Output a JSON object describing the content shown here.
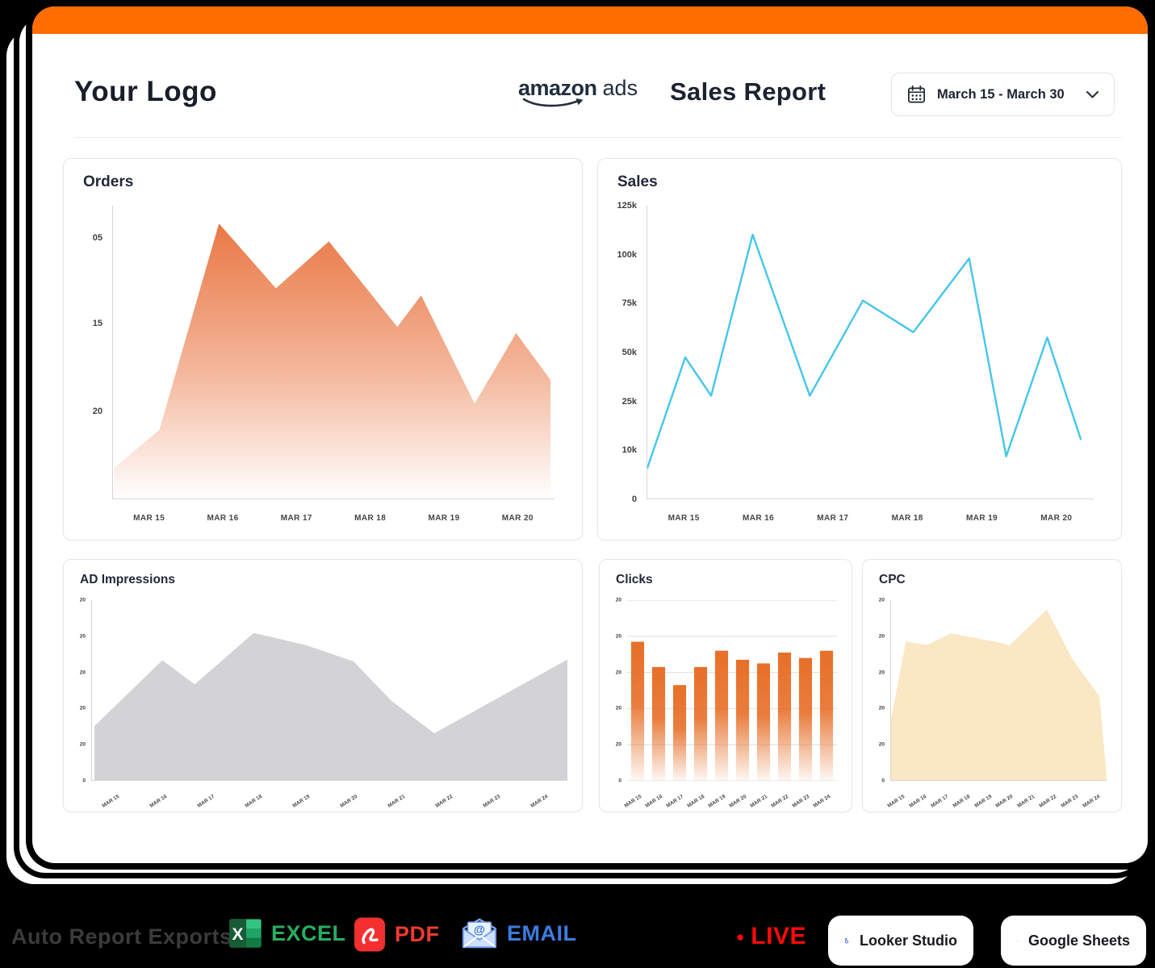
{
  "header": {
    "logo_text": "Your Logo",
    "brand_bold": "amazon",
    "brand_suffix": "ads",
    "report_title": "Sales Report",
    "date_range": "March 15 - March 30"
  },
  "chart_data": [
    {
      "id": "orders",
      "type": "area",
      "title": "Orders",
      "color": "#E8713B",
      "gradient": true,
      "gradient_stops": [
        [
          0,
          0.95
        ],
        [
          0.55,
          0.5
        ],
        [
          1,
          0
        ]
      ],
      "axis": "lb",
      "grid": false,
      "rotate_x_labels": false,
      "y_ticks": [
        {
          "label": "05",
          "pos": 0.11
        },
        {
          "label": "15",
          "pos": 0.4
        },
        {
          "label": "20",
          "pos": 0.7
        }
      ],
      "x_ticks": [
        "MAR 15",
        "MAR 16",
        "MAR 17",
        "MAR 18",
        "MAR 19",
        "MAR 20"
      ],
      "points_note": "x = fraction of plot width, y = fraction of plot height from baseline (read from pixels)",
      "points": [
        [
          0.002,
          0.104
        ],
        [
          0.105,
          0.234
        ],
        [
          0.24,
          0.939
        ],
        [
          0.369,
          0.718
        ],
        [
          0.489,
          0.878
        ],
        [
          0.644,
          0.586
        ],
        [
          0.698,
          0.694
        ],
        [
          0.819,
          0.324
        ],
        [
          0.913,
          0.565
        ],
        [
          0.991,
          0.405
        ]
      ]
    },
    {
      "id": "sales",
      "type": "line",
      "title": "Sales",
      "color": "#45C6E9",
      "gradient": false,
      "axis": "lb",
      "grid": false,
      "rotate_x_labels": false,
      "y_ticks": [
        {
          "label": "125k",
          "pos": 0
        },
        {
          "label": "100k",
          "pos": 0.167
        },
        {
          "label": "75k",
          "pos": 0.333
        },
        {
          "label": "50k",
          "pos": 0.5
        },
        {
          "label": "25k",
          "pos": 0.667
        },
        {
          "label": "10k",
          "pos": 0.833
        },
        {
          "label": "0",
          "pos": 1
        }
      ],
      "x_ticks": [
        "MAR 15",
        "MAR 16",
        "MAR 17",
        "MAR 18",
        "MAR 19",
        "MAR 20"
      ],
      "values_approx_k": [
        5,
        48,
        28,
        110,
        28,
        77,
        60,
        99,
        7,
        57,
        12
      ],
      "points": [
        [
          0.0,
          0.104
        ],
        [
          0.085,
          0.482
        ],
        [
          0.143,
          0.351
        ],
        [
          0.236,
          0.901
        ],
        [
          0.364,
          0.351
        ],
        [
          0.483,
          0.676
        ],
        [
          0.596,
          0.568
        ],
        [
          0.721,
          0.82
        ],
        [
          0.804,
          0.144
        ],
        [
          0.896,
          0.55
        ],
        [
          0.971,
          0.203
        ]
      ]
    },
    {
      "id": "ad_impressions",
      "type": "area",
      "title": "AD Impressions",
      "color": "#D3D3D5",
      "gradient": false,
      "axis": "lb",
      "grid": false,
      "rotate_x_labels": true,
      "y_ticks": [
        {
          "label": "20",
          "pos": 0
        },
        {
          "label": "20",
          "pos": 0.2
        },
        {
          "label": "20",
          "pos": 0.4
        },
        {
          "label": "20",
          "pos": 0.6
        },
        {
          "label": "20",
          "pos": 0.8
        },
        {
          "label": "0",
          "pos": 1
        }
      ],
      "x_ticks": [
        "MAR 15",
        "MAR 16",
        "MAR 17",
        "MAR 18",
        "MAR 19",
        "MAR 20",
        "MAR 21",
        "MAR 22",
        "MAR 23",
        "MAR 24"
      ],
      "points": [
        [
          0.005,
          0.3
        ],
        [
          0.148,
          0.666
        ],
        [
          0.216,
          0.532
        ],
        [
          0.34,
          0.818
        ],
        [
          0.45,
          0.75
        ],
        [
          0.55,
          0.66
        ],
        [
          0.63,
          0.44
        ],
        [
          0.72,
          0.26
        ],
        [
          1.0,
          0.67
        ]
      ]
    },
    {
      "id": "clicks",
      "type": "bar",
      "title": "Clicks",
      "color": "#E76F28",
      "gradient": true,
      "gradient_stops": [
        [
          0,
          1
        ],
        [
          0.45,
          0.9
        ],
        [
          1,
          0.05
        ]
      ],
      "axis": "",
      "grid": true,
      "rotate_x_labels": true,
      "y_ticks": [
        {
          "label": "20",
          "pos": 0
        },
        {
          "label": "20",
          "pos": 0.2
        },
        {
          "label": "20",
          "pos": 0.4
        },
        {
          "label": "20",
          "pos": 0.6
        },
        {
          "label": "20",
          "pos": 0.8
        },
        {
          "label": "0",
          "pos": 1
        }
      ],
      "x_ticks": [
        "MAR 15",
        "MAR 16",
        "MAR 17",
        "MAR 18",
        "MAR 19",
        "MAR 20",
        "MAR 21",
        "MAR 22",
        "MAR 23",
        "MAR 24"
      ],
      "bar_heights": [
        0.77,
        0.63,
        0.53,
        0.63,
        0.72,
        0.67,
        0.65,
        0.71,
        0.68,
        0.72
      ]
    },
    {
      "id": "cpc",
      "type": "area",
      "title": "CPC",
      "color": "#FAE7C3",
      "gradient": false,
      "axis": "lb",
      "grid": false,
      "rotate_x_labels": true,
      "y_ticks": [
        {
          "label": "20",
          "pos": 0
        },
        {
          "label": "20",
          "pos": 0.2
        },
        {
          "label": "20",
          "pos": 0.4
        },
        {
          "label": "20",
          "pos": 0.6
        },
        {
          "label": "20",
          "pos": 0.8
        },
        {
          "label": "0",
          "pos": 1
        }
      ],
      "x_ticks": [
        "MAR 15",
        "MAR 16",
        "MAR 17",
        "MAR 18",
        "MAR 19",
        "MAR 20",
        "MAR 21",
        "MAR 22",
        "MAR 23",
        "MAR 24"
      ],
      "points": [
        [
          0.0,
          0.34
        ],
        [
          0.069,
          0.77
        ],
        [
          0.166,
          0.75
        ],
        [
          0.278,
          0.815
        ],
        [
          0.477,
          0.77
        ],
        [
          0.55,
          0.75
        ],
        [
          0.722,
          0.947
        ],
        [
          0.843,
          0.67
        ],
        [
          0.967,
          0.465
        ],
        [
          1.0,
          0.02
        ]
      ]
    }
  ],
  "footer": {
    "exports_label": "Auto Report Exports",
    "excel_label": "EXCEL",
    "pdf_label": "PDF",
    "email_label": "EMAIL",
    "live_label": "LIVE",
    "live_dot": "●",
    "looker_label": "Looker Studio",
    "sheets_label": "Google Sheets"
  },
  "colors": {
    "topbar_orange": "#FF6C00",
    "orders_fill": "#E8713B",
    "sales_line": "#45C6E9",
    "impressions_fill": "#D3D3D5",
    "clicks_fill": "#E76F28",
    "cpc_fill": "#FAE7C3",
    "excel_green": "#27AE60",
    "pdf_red": "#F03A30",
    "email_blue": "#3D7BE0",
    "live_red": "#FF0A0A",
    "looker_blue": "#4175DF",
    "sheets_green": "#21A464"
  }
}
